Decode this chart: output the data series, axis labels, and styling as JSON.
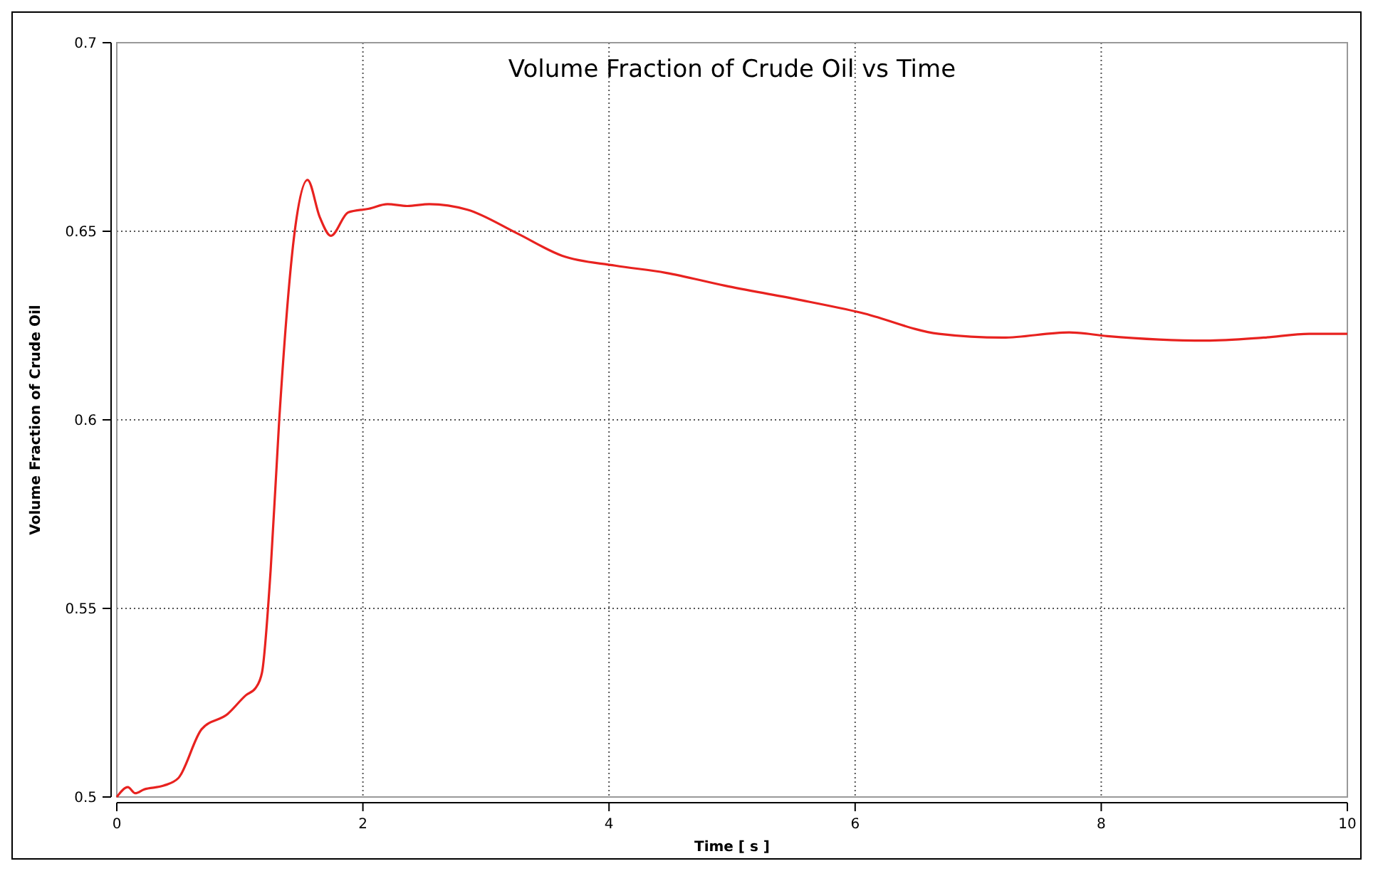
{
  "chart_data": {
    "type": "line",
    "title": "Volume Fraction of Crude Oil vs Time",
    "xlabel": "Time [ s ]",
    "ylabel": "Volume Fraction of Crude Oil",
    "xlim": [
      0,
      10
    ],
    "xticks": [
      0,
      2,
      4,
      6,
      8,
      10
    ],
    "ylim": [
      0.5,
      0.7
    ],
    "yticks": [
      0.5,
      0.55,
      0.6,
      0.65,
      0.7
    ],
    "grid": true,
    "line_style": "solid",
    "series": [
      {
        "color": "#e8221f",
        "x": [
          0,
          0.09,
          0.15,
          0.22,
          0.38,
          0.5,
          0.69,
          0.9,
          1.05,
          1.13,
          1.18,
          1.25,
          1.32,
          1.45,
          1.55,
          1.65,
          1.74,
          1.88,
          2.05,
          2.2,
          2.36,
          2.54,
          2.85,
          3.25,
          3.62,
          4.05,
          4.46,
          4.94,
          5.52,
          6.05,
          6.68,
          7.2,
          7.74,
          8.05,
          8.85,
          9.32,
          9.69,
          10
        ],
        "values": [
          0.5,
          0.5026,
          0.501,
          0.502,
          0.503,
          0.505,
          0.518,
          0.522,
          0.527,
          0.529,
          0.533,
          0.56,
          0.6,
          0.651,
          0.6636,
          0.6537,
          0.6488,
          0.655,
          0.656,
          0.6572,
          0.6567,
          0.6572,
          0.6557,
          0.6495,
          0.6435,
          0.6409,
          0.639,
          0.6356,
          0.632,
          0.6284,
          0.6228,
          0.6218,
          0.6232,
          0.6222,
          0.621,
          0.6218,
          0.6228,
          0.6228
        ]
      }
    ]
  }
}
